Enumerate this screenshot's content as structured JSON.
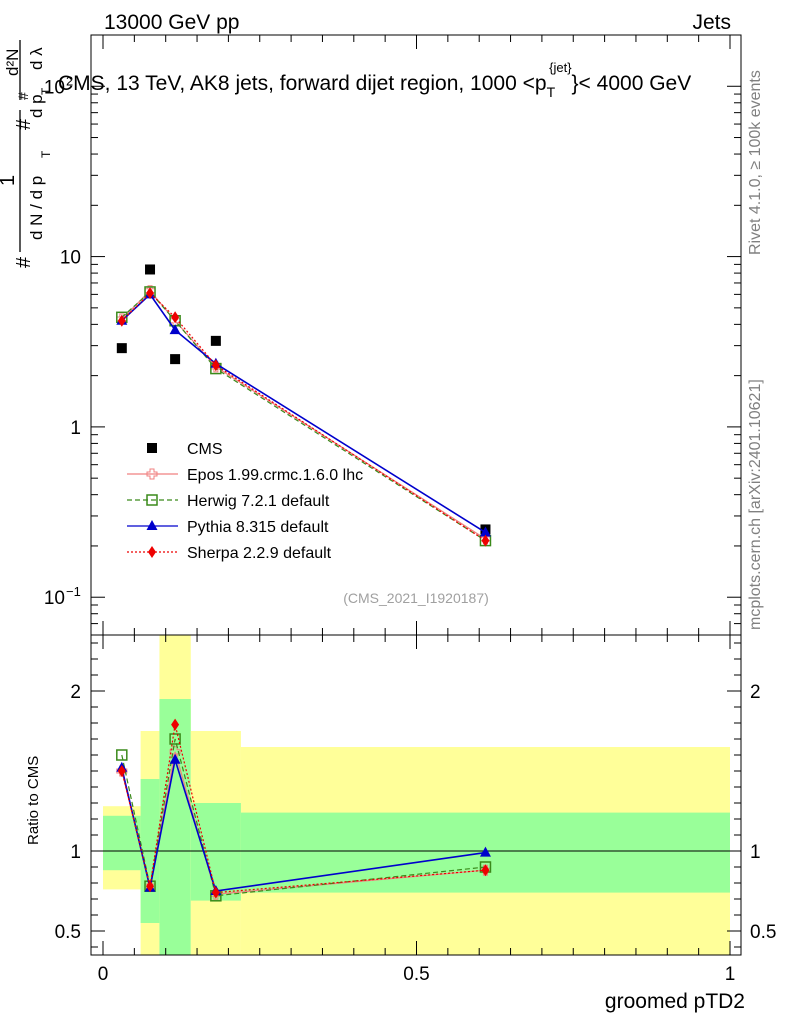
{
  "header": {
    "left": "13000 GeV pp",
    "right": "Jets",
    "title": "CMS, 13 TeV, AK8 jets, forward dijet region, 1000 <p",
    "title_sup": "{jet}",
    "title_sub": "T",
    "title_end": "}< 4000 GeV"
  },
  "side": {
    "rivet": "Rivet 4.1.0, ≥ 100k events",
    "mcplots": "mcplots.cern.ch [arXiv:2401.10621]"
  },
  "watermark": "(CMS_2021_I1920187)",
  "colors": {
    "cms": "#000000",
    "epos": "#f08080",
    "herwig": "#3a8a1a",
    "pythia": "#0000cc",
    "sherpa": "#ee0000",
    "band_inner": "#99ff99",
    "band_outer": "#ffff99"
  },
  "chart_data": [
    {
      "type": "line",
      "panel": "main",
      "title": "CMS, 13 TeV, AK8 jets, forward dijet region, 1000 < pT^{jet} < 4000 GeV",
      "ylabel": "1/dN/dpT  d²N/(dpT dλ)",
      "yscale": "log",
      "ylim": [
        0.06,
        200
      ],
      "xlim": [
        -0.02,
        1.0
      ],
      "y_ticks": [
        {
          "v": 0.1,
          "label": "10",
          "exp": "−1"
        },
        {
          "v": 1,
          "label": "1",
          "exp": ""
        },
        {
          "v": 10,
          "label": "10",
          "exp": ""
        },
        {
          "v": 100,
          "label": "10",
          "exp": "2"
        }
      ],
      "x": [
        0.03,
        0.075,
        0.115,
        0.18,
        0.61
      ],
      "series": [
        {
          "name": "CMS",
          "key": "cms",
          "marker": "square",
          "values": [
            2.9,
            8.4,
            2.5,
            3.2,
            0.25
          ]
        },
        {
          "name": "Epos 1.99.crmc.1.6.0 lhc",
          "key": "epos",
          "marker": "open-cross",
          "values": [
            4.3,
            6.3,
            4.2,
            2.25,
            0.22
          ]
        },
        {
          "name": "Herwig 7.2.1 default",
          "key": "herwig",
          "marker": "open-square",
          "values": [
            4.4,
            6.2,
            4.2,
            2.2,
            0.215
          ]
        },
        {
          "name": "Pythia 8.315 default",
          "key": "pythia",
          "marker": "triangle",
          "values": [
            4.2,
            6.0,
            3.7,
            2.35,
            0.24
          ]
        },
        {
          "name": "Sherpa 2.2.9 default",
          "key": "sherpa",
          "marker": "diamond",
          "values": [
            4.2,
            6.1,
            4.4,
            2.3,
            0.215
          ]
        }
      ]
    },
    {
      "type": "line",
      "panel": "ratio",
      "ylabel": "Ratio to CMS",
      "xlabel": "groomed pTD2",
      "ylim": [
        0.35,
        2.35
      ],
      "y_ticks": [
        {
          "v": 0.5,
          "label": "0.5"
        },
        {
          "v": 1,
          "label": "1"
        },
        {
          "v": 2,
          "label": "2"
        }
      ],
      "x_ticks": [
        {
          "v": 0,
          "label": "0"
        },
        {
          "v": 0.5,
          "label": "0.5"
        },
        {
          "v": 1,
          "label": "1"
        }
      ],
      "x": [
        0.03,
        0.075,
        0.115,
        0.18,
        0.61
      ],
      "series": [
        {
          "name": "Epos",
          "key": "epos",
          "marker": "open-cross",
          "values": [
            1.5,
            0.78,
            1.62,
            0.73,
            0.88
          ]
        },
        {
          "name": "Herwig",
          "key": "herwig",
          "marker": "open-square",
          "values": [
            1.6,
            0.78,
            1.7,
            0.72,
            0.9
          ]
        },
        {
          "name": "Pythia",
          "key": "pythia",
          "marker": "triangle",
          "values": [
            1.52,
            0.77,
            1.57,
            0.75,
            0.99
          ]
        },
        {
          "name": "Sherpa",
          "key": "sherpa",
          "marker": "diamond",
          "values": [
            1.5,
            0.78,
            1.79,
            0.74,
            0.88
          ]
        }
      ],
      "bands": [
        {
          "x0": 0.0,
          "x1": 0.06,
          "inner": [
            0.88,
            1.22
          ],
          "outer": [
            0.76,
            1.28
          ]
        },
        {
          "x0": 0.06,
          "x1": 0.09,
          "inner": [
            0.55,
            1.45
          ],
          "outer": [
            0.3,
            1.75
          ]
        },
        {
          "x0": 0.09,
          "x1": 0.14,
          "inner": [
            0.3,
            1.95
          ],
          "outer": [
            0.3,
            2.45
          ]
        },
        {
          "x0": 0.14,
          "x1": 0.22,
          "inner": [
            0.69,
            1.3
          ],
          "outer": [
            0.3,
            1.75
          ]
        },
        {
          "x0": 0.22,
          "x1": 1.0,
          "inner": [
            0.74,
            1.24
          ],
          "outer": [
            0.3,
            1.65
          ]
        }
      ]
    }
  ]
}
